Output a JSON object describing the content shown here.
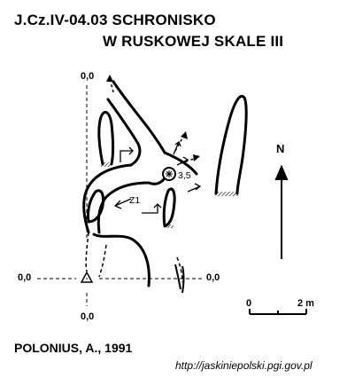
{
  "title": {
    "line1": "J.Cz.IV-04.03  SCHRONISKO",
    "line2": "W RUSKOWEJ SKALE III"
  },
  "plan": {
    "section_labels": {
      "top": "0,0",
      "left": "0,0",
      "right": "0,0",
      "bottom": "0,0"
    },
    "height_mark": "3,5",
    "entrance_label": "Z1",
    "north_label": "N"
  },
  "scale_bar": {
    "start": "0",
    "end": "2 m"
  },
  "author": "POLONIUS, A., 1991",
  "source_url": "http://jaskiniepolski.pgi.gov.pl",
  "colors": {
    "ink": "#000000",
    "background": "#ffffff"
  }
}
